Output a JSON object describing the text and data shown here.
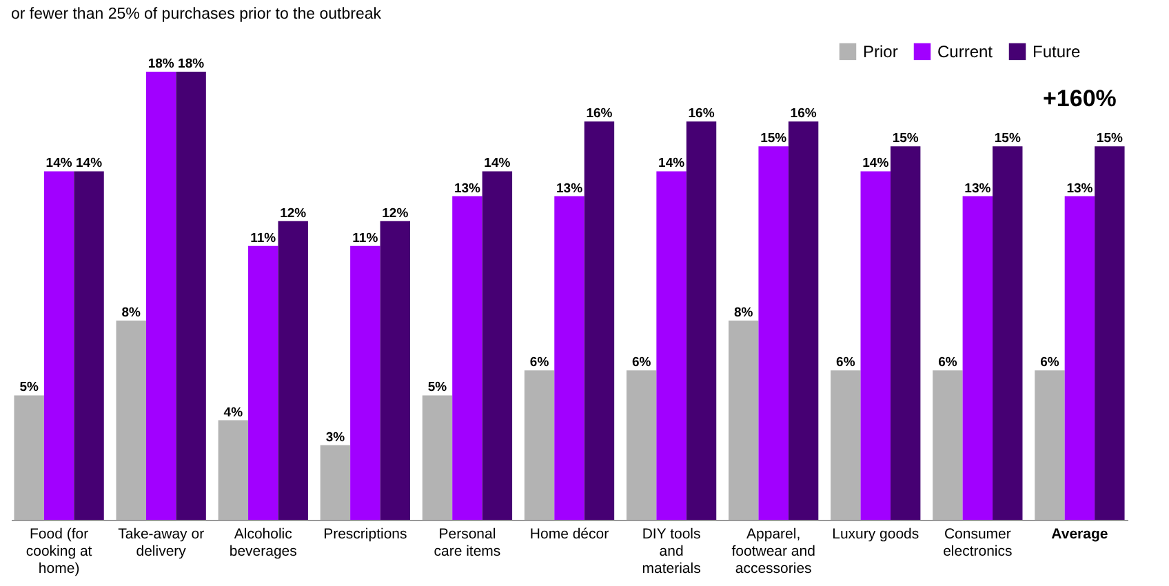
{
  "chart_data": {
    "type": "bar",
    "subtitle": "or fewer than 25% of purchases prior to the outbreak",
    "categories": [
      "Food (for cooking at home)",
      "Take-away or delivery",
      "Alcoholic beverages",
      "Prescriptions",
      "Personal care items",
      "Home décor",
      "DIY tools and materials",
      "Apparel, footwear and accessories",
      "Luxury goods",
      "Consumer electronics",
      "Average"
    ],
    "series": [
      {
        "name": "Prior",
        "color": "#b3b3b3",
        "values": [
          5,
          8,
          4,
          3,
          5,
          6,
          6,
          8,
          6,
          6,
          6
        ],
        "value_labels": [
          "5%",
          "8%",
          "4%",
          "3%",
          "5%",
          "6%",
          "6%",
          "8%",
          "6%",
          "6%",
          "6%"
        ]
      },
      {
        "name": "Current",
        "color": "#a100ff",
        "values": [
          14,
          18,
          11,
          11,
          13,
          13,
          14,
          15,
          14,
          13,
          13
        ],
        "value_labels": [
          "14%",
          "18%",
          "11%",
          "11%",
          "13%",
          "13%",
          "14%",
          "15%",
          "14%",
          "13%",
          "13%"
        ]
      },
      {
        "name": "Future",
        "color": "#460073",
        "values": [
          14,
          18,
          12,
          12,
          14,
          16,
          16,
          16,
          15,
          15,
          15
        ],
        "value_labels": [
          "14%",
          "18%",
          "12%",
          "12%",
          "14%",
          "16%",
          "16%",
          "16%",
          "15%",
          "15%",
          "15%"
        ]
      }
    ],
    "annotations": [
      "+160%"
    ],
    "legend": "top right",
    "grid": false
  }
}
